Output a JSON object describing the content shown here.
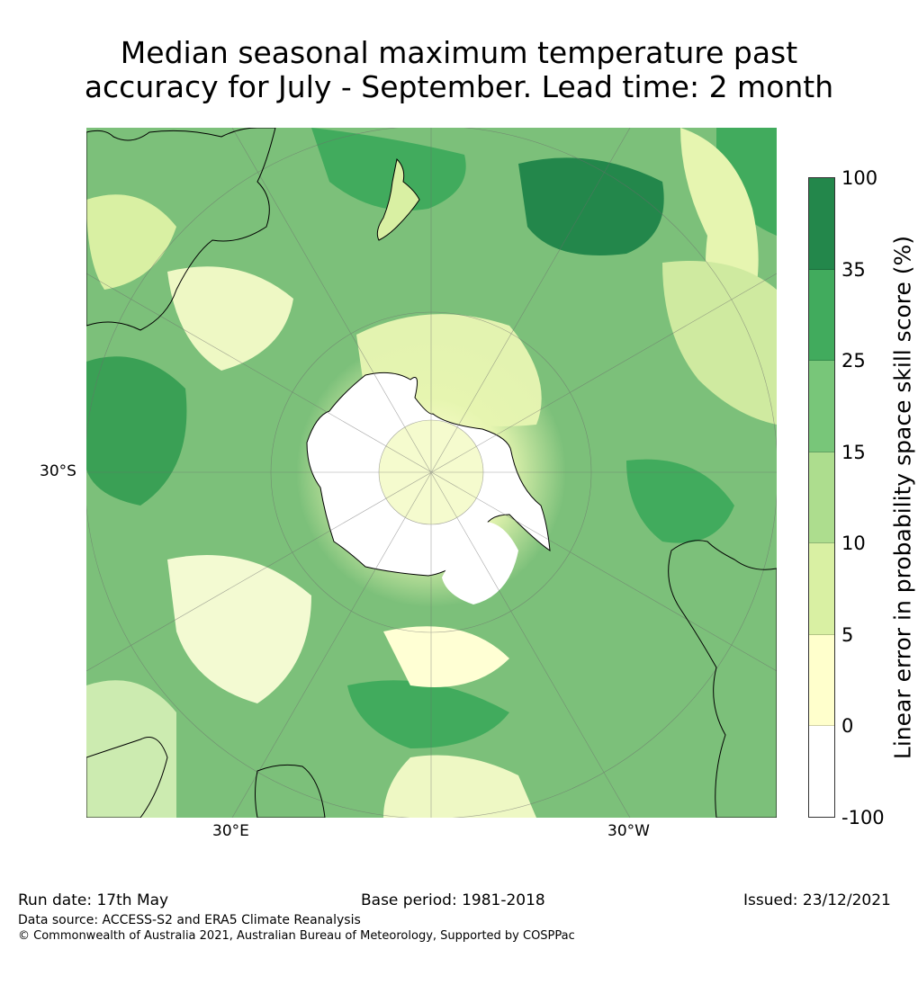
{
  "title": {
    "line1": "Median seasonal maximum temperature past",
    "line2": "accuracy for July - September. Lead time: 2 month"
  },
  "map": {
    "projection": "south polar stereographic",
    "latitude_label": "30°S",
    "longitude_labels": [
      "30°E",
      "30°W"
    ],
    "landmarks_visible": [
      "Antarctica",
      "Australia",
      "New Zealand",
      "South America",
      "Africa"
    ]
  },
  "colorbar": {
    "label": "Linear error in probability space skill score (%)",
    "ticks": [
      "100",
      "35",
      "25",
      "15",
      "10",
      "5",
      "0",
      "-100"
    ],
    "colors": [
      "#23874b",
      "#41ab5d",
      "#78c679",
      "#addd8e",
      "#d9f0a3",
      "#ffffcc",
      "#ffffff"
    ]
  },
  "footer": {
    "run_date": "Run date: 17th May",
    "base_period": "Base period: 1981-2018",
    "issued": "Issued: 23/12/2021",
    "data_source": "Data source: ACCESS-S2 and ERA5 Climate Reanalysis",
    "copyright": "© Commonwealth of Australia 2021, Australian Bureau of Meteorology, Supported by COSPPac"
  }
}
